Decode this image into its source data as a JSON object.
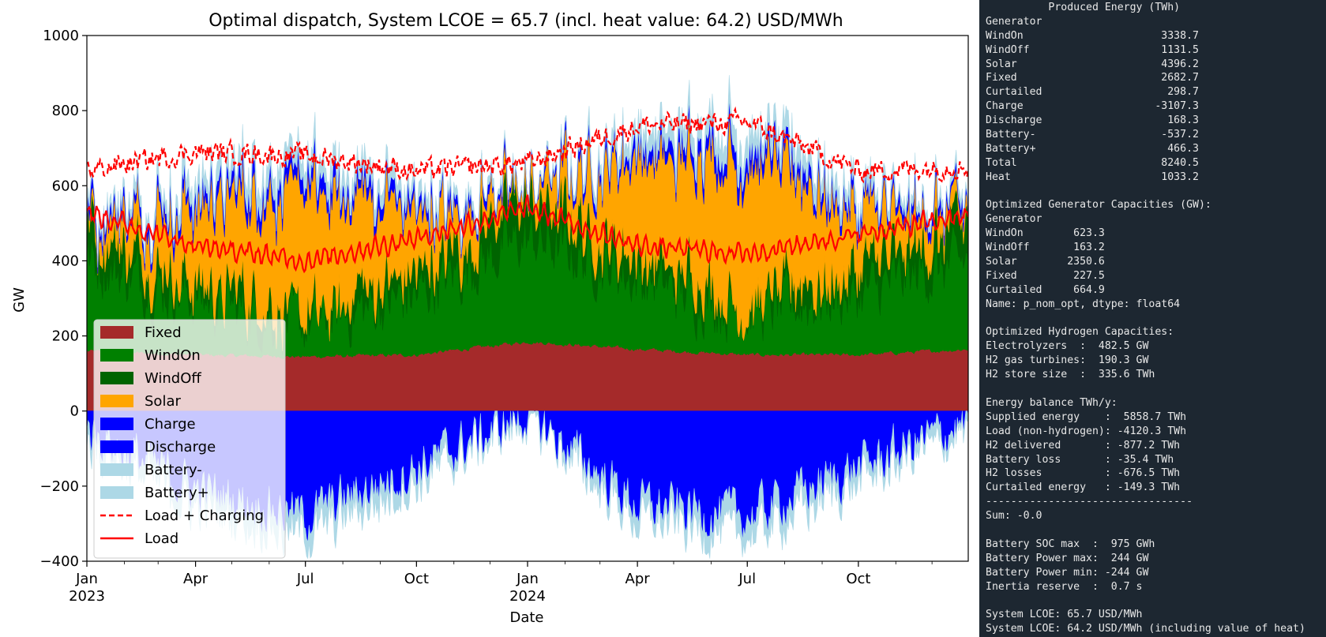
{
  "chart_data": {
    "type": "area",
    "title": "Optimal dispatch, System LCOE = 65.7 (incl. heat value: 64.2) USD/MWh",
    "xlabel": "Date",
    "ylabel": "GW",
    "ylim": [
      -400,
      1000
    ],
    "xlim": [
      "2023-01-01",
      "2024-12-31"
    ],
    "yticks": [
      "1000",
      "800",
      "600",
      "400",
      "200",
      "0",
      "−200",
      "−400"
    ],
    "xticks": [
      {
        "date": "2023-01-01",
        "label": "Jan",
        "sublabel": "2023"
      },
      {
        "date": "2023-04-01",
        "label": "Apr",
        "sublabel": ""
      },
      {
        "date": "2023-07-01",
        "label": "Jul",
        "sublabel": ""
      },
      {
        "date": "2023-10-01",
        "label": "Oct",
        "sublabel": ""
      },
      {
        "date": "2024-01-01",
        "label": "Jan",
        "sublabel": "2024"
      },
      {
        "date": "2024-04-01",
        "label": "Apr",
        "sublabel": ""
      },
      {
        "date": "2024-07-01",
        "label": "Jul",
        "sublabel": ""
      },
      {
        "date": "2024-10-01",
        "label": "Oct",
        "sublabel": ""
      }
    ],
    "legend_position": "lower-left",
    "series": [
      {
        "name": "Fixed",
        "kind": "area",
        "color": "#a52a2a",
        "x": [
          "2023-01-01",
          "2023-04-01",
          "2023-07-01",
          "2023-10-01",
          "2024-01-01",
          "2024-04-01",
          "2024-07-01",
          "2024-10-01",
          "2024-12-31"
        ],
        "values": [
          160,
          150,
          145,
          150,
          185,
          165,
          150,
          150,
          165
        ]
      },
      {
        "name": "WindOn",
        "kind": "area",
        "color": "#008000",
        "x": [
          "2023-01-01",
          "2023-04-01",
          "2023-07-01",
          "2023-10-01",
          "2024-01-01",
          "2024-04-01",
          "2024-07-01",
          "2024-10-01",
          "2024-12-31"
        ],
        "values": [
          240,
          150,
          80,
          160,
          280,
          190,
          110,
          160,
          240
        ]
      },
      {
        "name": "WindOff",
        "kind": "area",
        "color": "#006400",
        "x": [
          "2023-01-01",
          "2023-04-01",
          "2023-07-01",
          "2023-10-01",
          "2024-01-01",
          "2024-04-01",
          "2024-07-01",
          "2024-10-01",
          "2024-12-31"
        ],
        "values": [
          90,
          50,
          25,
          60,
          100,
          60,
          30,
          60,
          90
        ]
      },
      {
        "name": "Solar",
        "kind": "area",
        "color": "#ffa500",
        "x": [
          "2023-01-01",
          "2023-04-01",
          "2023-07-01",
          "2023-10-01",
          "2024-01-01",
          "2024-04-01",
          "2024-07-01",
          "2024-10-01",
          "2024-12-31"
        ],
        "values": [
          20,
          200,
          330,
          150,
          20,
          260,
          380,
          160,
          20
        ]
      },
      {
        "name": "Charge",
        "kind": "area",
        "color": "#0000ff",
        "x": [
          "2023-01-01",
          "2023-04-01",
          "2023-07-01",
          "2023-10-01",
          "2024-01-01",
          "2024-04-01",
          "2024-07-01",
          "2024-10-01",
          "2024-12-31"
        ],
        "values": [
          -50,
          -210,
          -280,
          -150,
          -10,
          -250,
          -280,
          -150,
          -30
        ]
      },
      {
        "name": "Discharge",
        "kind": "area",
        "color": "#0000ff",
        "x": [
          "2023-01-01",
          "2023-04-01",
          "2023-07-01",
          "2023-10-01",
          "2024-01-01",
          "2024-04-01",
          "2024-07-01",
          "2024-10-01",
          "2024-12-31"
        ],
        "values": [
          20,
          30,
          40,
          25,
          10,
          30,
          40,
          25,
          20
        ]
      },
      {
        "name": "Battery-",
        "kind": "area",
        "color": "#add8e6",
        "x": [
          "2023-01-01",
          "2023-04-01",
          "2023-07-01",
          "2023-10-01",
          "2024-01-01",
          "2024-04-01",
          "2024-07-01",
          "2024-10-01",
          "2024-12-31"
        ],
        "values": [
          -30,
          -45,
          -55,
          -40,
          -10,
          -45,
          -55,
          -40,
          -20
        ]
      },
      {
        "name": "Battery+",
        "kind": "area",
        "color": "#add8e6",
        "x": [
          "2023-01-01",
          "2023-04-01",
          "2023-07-01",
          "2023-10-01",
          "2024-01-01",
          "2024-04-01",
          "2024-07-01",
          "2024-10-01",
          "2024-12-31"
        ],
        "values": [
          10,
          40,
          50,
          30,
          5,
          45,
          55,
          30,
          10
        ]
      },
      {
        "name": "Load + Charging",
        "kind": "line",
        "style": "dashed",
        "color": "#ff0000",
        "x": [
          "2023-01-01",
          "2023-04-01",
          "2023-07-01",
          "2023-10-01",
          "2024-01-01",
          "2024-04-01",
          "2024-07-01",
          "2024-10-01",
          "2024-12-31"
        ],
        "values": [
          640,
          690,
          680,
          640,
          660,
          760,
          770,
          640,
          650
        ]
      },
      {
        "name": "Load",
        "kind": "line",
        "style": "solid",
        "color": "#ff0000",
        "x": [
          "2023-01-01",
          "2023-04-01",
          "2023-07-01",
          "2023-10-01",
          "2024-01-01",
          "2024-04-01",
          "2024-07-01",
          "2024-10-01",
          "2024-12-31"
        ],
        "values": [
          530,
          440,
          400,
          460,
          540,
          440,
          420,
          470,
          520
        ]
      }
    ]
  },
  "console": {
    "lines": [
      "          Produced Energy (TWh)",
      "Generator",
      "WindOn                      3338.7",
      "WindOff                     1131.5",
      "Solar                       4396.2",
      "Fixed                       2682.7",
      "Curtailed                    298.7",
      "Charge                     -3107.3",
      "Discharge                    168.3",
      "Battery-                    -537.2",
      "Battery+                     466.3",
      "Total                       8240.5",
      "Heat                        1033.2",
      "",
      "Optimized Generator Capacities (GW):",
      "Generator",
      "WindOn        623.3",
      "WindOff       163.2",
      "Solar        2350.6",
      "Fixed         227.5",
      "Curtailed     664.9",
      "Name: p_nom_opt, dtype: float64",
      "",
      "Optimized Hydrogen Capacities:",
      "Electrolyzers  :  482.5 GW",
      "H2 gas turbines:  190.3 GW",
      "H2 store size  :  335.6 TWh",
      "",
      "Energy balance TWh/y:",
      "Supplied energy    :  5858.7 TWh",
      "Load (non-hydrogen): -4120.3 TWh",
      "H2 delivered       : -877.2 TWh",
      "Battery loss       : -35.4 TWh",
      "H2 losses          : -676.5 TWh",
      "Curtailed energy   : -149.3 TWh",
      "---------------------------------",
      "Sum: -0.0",
      "",
      "Battery SOC max  :  975 GWh",
      "Battery Power max:  244 GW",
      "Battery Power min: -244 GW",
      "Inertia reserve  :  0.7 s",
      "",
      "System LCOE: 65.7 USD/MWh",
      "System LCOE: 64.2 USD/MWh (including value of heat)"
    ]
  }
}
